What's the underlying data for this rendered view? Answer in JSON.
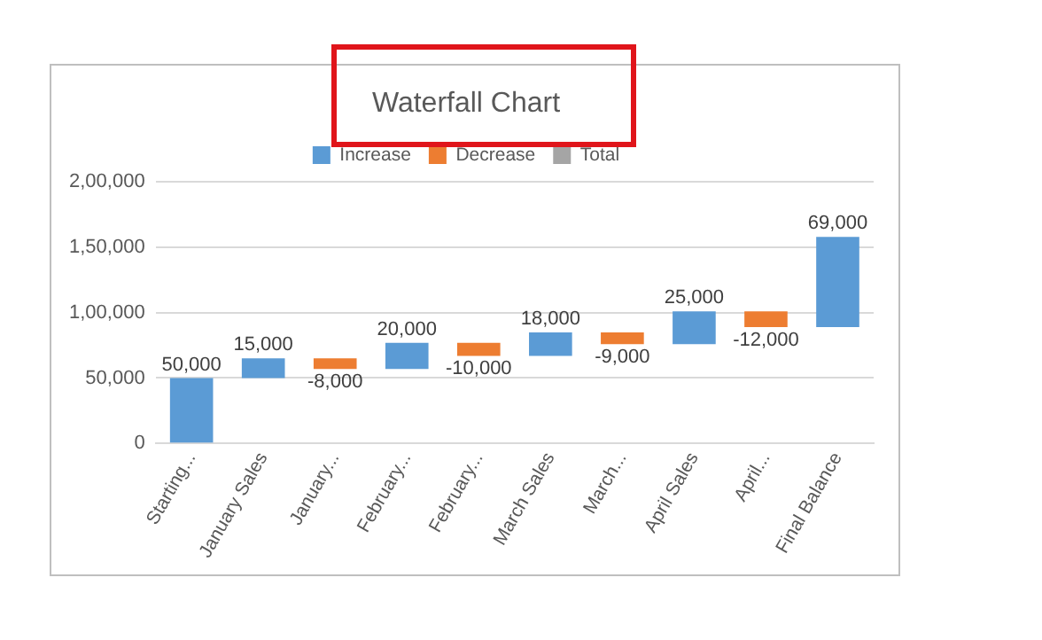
{
  "chart_data": {
    "type": "bar",
    "title": "Waterfall Chart",
    "categories": [
      "Starting...",
      "January Sales",
      "January...",
      "February...",
      "February...",
      "March Sales",
      "March...",
      "April Sales",
      "April...",
      "Final Balance"
    ],
    "series": [
      {
        "name": "Increase",
        "color": "#5b9bd5",
        "base": [
          0,
          50000,
          null,
          57000,
          null,
          67000,
          null,
          76000,
          null,
          89000
        ],
        "values": [
          50000,
          15000,
          null,
          20000,
          null,
          18000,
          null,
          25000,
          null,
          69000
        ],
        "value_labels": [
          "50,000",
          "15,000",
          null,
          "20,000",
          null,
          "18,000",
          null,
          "25,000",
          null,
          "69,000"
        ]
      },
      {
        "name": "Decrease",
        "color": "#ed7d31",
        "base": [
          null,
          null,
          65000,
          null,
          77000,
          null,
          85000,
          null,
          101000,
          null
        ],
        "values": [
          null,
          null,
          -8000,
          null,
          -10000,
          null,
          -9000,
          null,
          -12000,
          null
        ],
        "value_labels": [
          null,
          null,
          "-8,000",
          null,
          "-10,000",
          null,
          "-9,000",
          null,
          "-12,000",
          null
        ]
      },
      {
        "name": "Total",
        "color": "#a5a5a5",
        "values": [
          null,
          null,
          null,
          null,
          null,
          null,
          null,
          null,
          null,
          null
        ]
      }
    ],
    "ylim": [
      0,
      200000
    ],
    "yticks": [
      {
        "value": 0,
        "label": "0"
      },
      {
        "value": 50000,
        "label": "50,000"
      },
      {
        "value": 100000,
        "label": "1,00,000"
      },
      {
        "value": 150000,
        "label": "1,50,000"
      },
      {
        "value": 200000,
        "label": "2,00,000"
      }
    ],
    "grid": "y",
    "legend": "top"
  }
}
